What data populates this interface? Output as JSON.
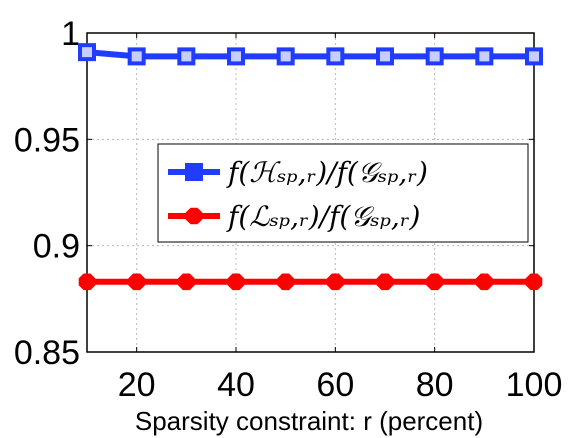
{
  "chart_data": {
    "type": "line",
    "x": [
      10,
      20,
      30,
      40,
      50,
      60,
      70,
      80,
      90,
      100
    ],
    "xlim": [
      10,
      100
    ],
    "ylim": [
      0.85,
      1.0
    ],
    "xticks": [
      20,
      40,
      60,
      80,
      100
    ],
    "yticks": [
      0.85,
      0.9,
      0.95,
      1.0
    ],
    "xtick_labels": [
      "20",
      "40",
      "60",
      "80",
      "100"
    ],
    "ytick_labels": [
      "0.85",
      "0.9",
      "0.95",
      "1"
    ],
    "xlabel": "Sparsity constraint:  r (percent)",
    "ylabel": "",
    "title": "",
    "grid": true,
    "legend_position": "center-right",
    "series": [
      {
        "name": "f(H_sp,r)/f(G_sp,r)",
        "name_display": "f(ℋₛₚ,ᵣ)/f(𝒢ₛₚ,ᵣ)",
        "color": "#1f3cff",
        "marker": "square",
        "values": [
          0.991,
          0.989,
          0.989,
          0.989,
          0.989,
          0.989,
          0.989,
          0.989,
          0.989,
          0.989
        ]
      },
      {
        "name": "f(L_sp,r)/f(G_sp,r)",
        "name_display": "f(ℒₛₚ,ᵣ)/f(𝒢ₛₚ,ᵣ)",
        "color": "#ff0000",
        "marker": "octagon",
        "values": [
          0.883,
          0.883,
          0.883,
          0.883,
          0.883,
          0.883,
          0.883,
          0.883,
          0.883,
          0.883
        ]
      }
    ]
  }
}
